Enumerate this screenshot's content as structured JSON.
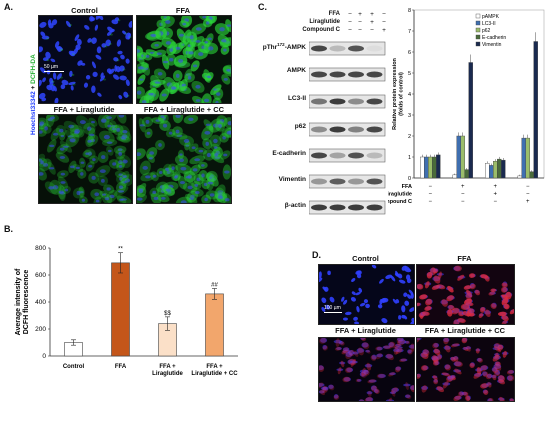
{
  "panelA": {
    "letter": "A.",
    "side_label_blue": "Hoechst33342",
    "side_label_plus": " + ",
    "side_label_green": "DCFH-DA",
    "titles": [
      "Control",
      "FFA",
      "FFA + Liraglutide",
      "FFA + Liraglutide + CC"
    ],
    "scale_label": "50 µm"
  },
  "panelB": {
    "letter": "B.",
    "chart_data": {
      "type": "bar",
      "categories": [
        "Control",
        "FFA",
        "FFA + Liraglutide",
        "FFA + Liraglutide + CC"
      ],
      "category_lines": [
        [
          "Control"
        ],
        [
          "FFA"
        ],
        [
          "FFA +",
          "Liraglutide"
        ],
        [
          "FFA +",
          "Liraglutide + CC"
        ]
      ],
      "values": [
        100,
        690,
        240,
        460
      ],
      "errors": [
        20,
        75,
        50,
        40
      ],
      "significance": [
        "",
        "**",
        "$$",
        "##"
      ],
      "colors": [
        "#ffffff",
        "#c4561a",
        "#fbe0c8",
        "#f2a66c"
      ],
      "ylabel_lines": [
        "Average intensity of",
        "DCFH fluorescence"
      ],
      "yticks": [
        0,
        200,
        400,
        600,
        800
      ],
      "ylim": [
        0,
        800
      ]
    }
  },
  "panelC": {
    "letter": "C.",
    "conditions": [
      "FFA",
      "Liraglutide",
      "Compound C"
    ],
    "signs": [
      [
        "−",
        "+",
        "+",
        "−"
      ],
      [
        "−",
        "−",
        "+",
        "−"
      ],
      [
        "−",
        "−",
        "−",
        "+"
      ]
    ],
    "blots": [
      {
        "sup": "172",
        "pre": "pThr",
        "post": "-AMPK"
      },
      {
        "label": "AMPK"
      },
      {
        "label": "LC3-II"
      },
      {
        "label": "p62"
      },
      {
        "label": "E-cadherin"
      },
      {
        "label": "Vimentin"
      },
      {
        "label": "β-actin"
      }
    ],
    "chart_data": {
      "type": "bar",
      "ylabel_lines": [
        "Relative protein expression",
        "(folds of control)"
      ],
      "yticks": [
        0,
        1,
        2,
        3,
        4,
        5,
        6,
        7,
        8
      ],
      "ylim": [
        0,
        8
      ],
      "groups": 4,
      "series": [
        {
          "name": "pAMPK",
          "color": "#ffffff",
          "values": [
            1.0,
            0.15,
            0.7,
            0.1
          ]
        },
        {
          "name": "LC3-II",
          "color": "#3f6fb0",
          "values": [
            1.0,
            2.0,
            0.6,
            1.9
          ]
        },
        {
          "name": "p62",
          "color": "#9bbd6a",
          "values": [
            1.0,
            2.0,
            0.8,
            1.9
          ]
        },
        {
          "name": "E-cadherin",
          "color": "#4a6b3a",
          "values": [
            1.0,
            0.4,
            0.9,
            0.3
          ]
        },
        {
          "name": "Vimentin",
          "color": "#1a2a4f",
          "values": [
            1.1,
            5.5,
            0.85,
            6.5
          ]
        }
      ],
      "condition_names": [
        "FFA",
        "Liraglutide",
        "Compound C"
      ],
      "signs": [
        [
          "−",
          "+",
          "+",
          "−"
        ],
        [
          "−",
          "−",
          "+",
          "−"
        ],
        [
          "−",
          "−",
          "−",
          "+"
        ]
      ]
    }
  },
  "panelD": {
    "letter": "D.",
    "titles": [
      "Control",
      "FFA",
      "FFA + Liraglutide",
      "FFA + Liraglutide + CC"
    ],
    "scale_label": "100 µm"
  },
  "colors": {
    "hoechst_blue": "#1f3cff",
    "dcfh_green": "#2bd43a",
    "red_stain": "#e02a3a"
  }
}
